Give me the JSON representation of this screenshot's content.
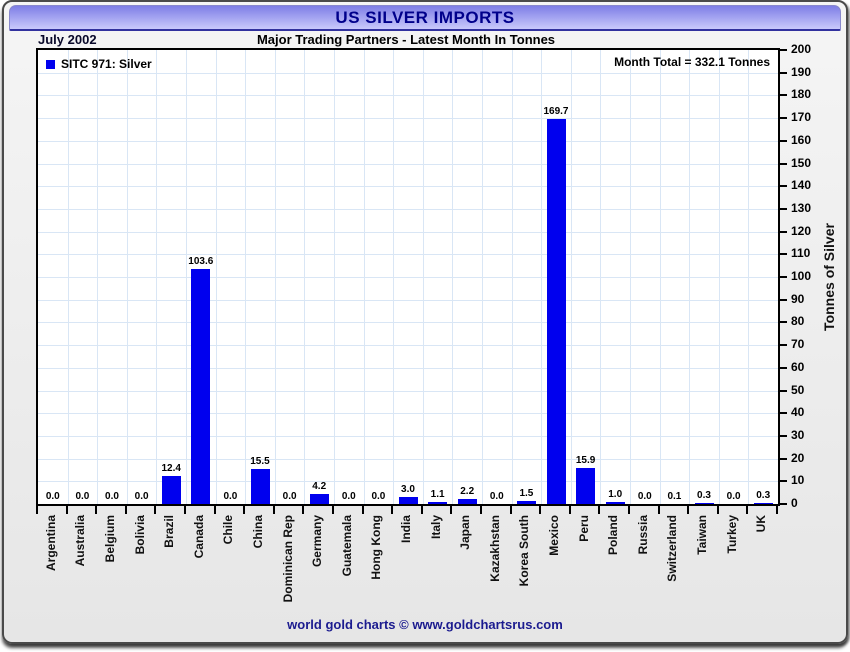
{
  "header": {
    "title": "US SILVER IMPORTS",
    "date_label": "July 2002",
    "subtitle": "Major Trading Partners - Latest Month In Tonnes"
  },
  "legend": {
    "label": "SITC 971: Silver",
    "swatch_color": "#0000ee"
  },
  "annotations": {
    "month_total": "Month Total = 332.1 Tonnes"
  },
  "footer": {
    "credit": "world gold charts © www.goldchartsrus.com"
  },
  "colors": {
    "bar": "#0000ee",
    "grid": "#d9e6f5",
    "title_text": "#00008b",
    "titlebar_top": "#7e7ee6",
    "titlebar_bottom": "#c9c9fb",
    "footer_text": "#1b1b8f"
  },
  "chart_data": {
    "type": "bar",
    "title": "US SILVER IMPORTS",
    "subtitle": "Major Trading Partners - Latest Month In Tonnes",
    "period": "July 2002",
    "series_name": "SITC 971: Silver",
    "ylabel": "Tonnes of Silver",
    "ylim": [
      0,
      200
    ],
    "ytick_step": 10,
    "grid": true,
    "legend_position": "top-left",
    "month_total": 332.1,
    "bar_color": "#0000ee",
    "categories": [
      "Argentina",
      "Australia",
      "Belgium",
      "Bolivia",
      "Brazil",
      "Canada",
      "Chile",
      "China",
      "Dominican Rep",
      "Germany",
      "Guatemala",
      "Hong Kong",
      "India",
      "Italy",
      "Japan",
      "Kazakhstan",
      "Korea South",
      "Mexico",
      "Peru",
      "Poland",
      "Russia",
      "Switzerland",
      "Taiwan",
      "Turkey",
      "UK"
    ],
    "values": [
      0.0,
      0.0,
      0.0,
      0.0,
      12.4,
      103.6,
      0.0,
      15.5,
      0.0,
      4.2,
      0.0,
      0.0,
      3.0,
      1.1,
      2.2,
      0.0,
      1.5,
      169.7,
      15.9,
      1.0,
      0.0,
      0.1,
      0.3,
      0.0,
      0.3
    ]
  }
}
